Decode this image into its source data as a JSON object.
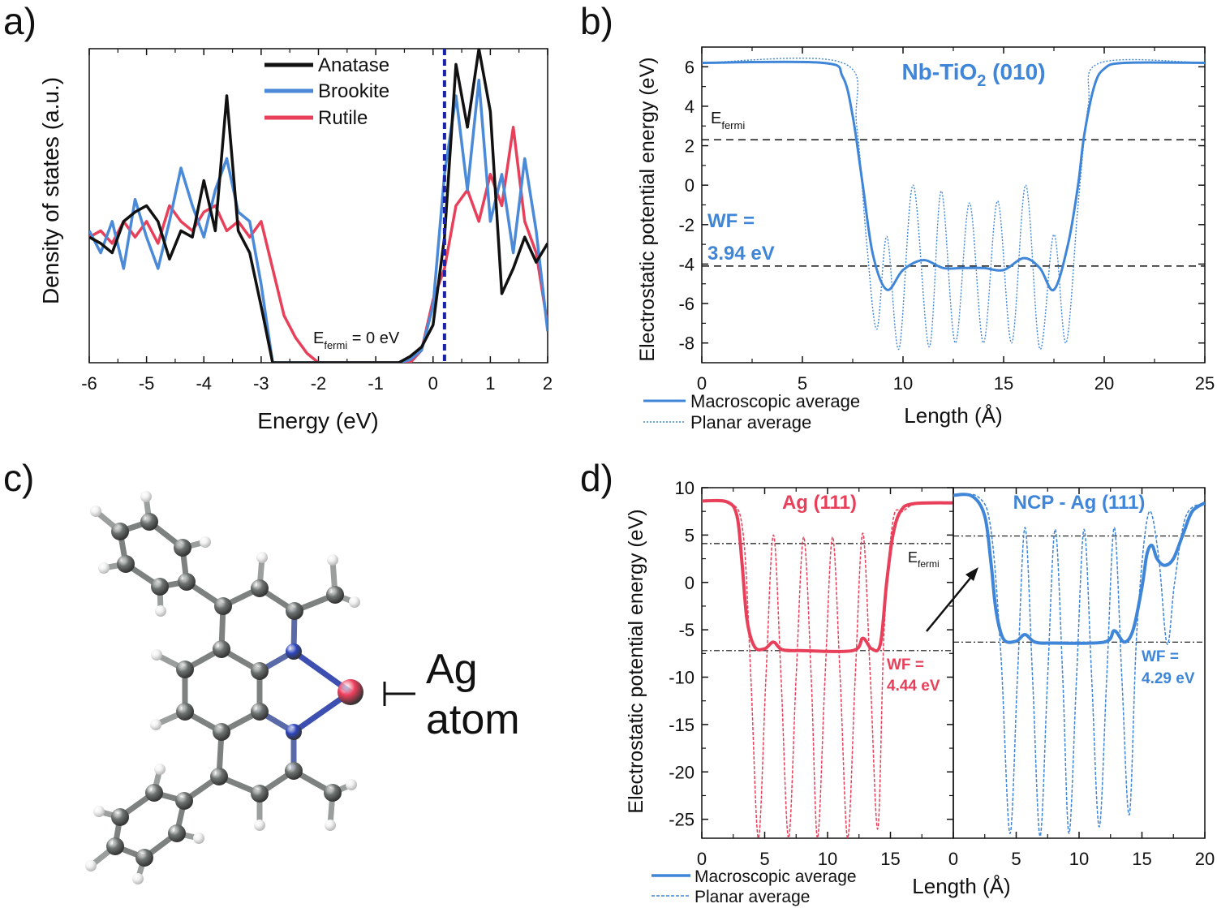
{
  "panels": {
    "a": {
      "label": "a)"
    },
    "b": {
      "label": "b)"
    },
    "c": {
      "label": "c)",
      "ag_label_line1": "Ag",
      "ag_label_line2": "atom"
    },
    "d": {
      "label": "d)"
    }
  },
  "colors": {
    "anatase": "#111111",
    "brookite": "#4a8ad8",
    "rutile": "#e8405a",
    "fermi_line": "#1a22a8",
    "blue": "#3f85d8",
    "red": "#e8405a",
    "carbon": "#6e7472",
    "nitrogen": "#2e46c0",
    "hydrogen": "#f2f2f2",
    "silver": "#f0405e"
  },
  "chart_data": [
    {
      "id": "a",
      "type": "line",
      "xlabel": "Energy (eV)",
      "ylabel": "Density of states (a.u.)",
      "xlim": [
        -6,
        2
      ],
      "ylim": [
        0,
        1
      ],
      "xticks": [
        -6,
        -5,
        -4,
        -3,
        -2,
        -1,
        0,
        1,
        2
      ],
      "xtick_labels": [
        "-6",
        "-5",
        "-4",
        "-3",
        "-2",
        "-1",
        "0",
        "1",
        "2"
      ],
      "legend_placement": "top-center",
      "x_step": 0.2,
      "series": [
        {
          "name": "Anatase",
          "color": "#111111",
          "values": [
            0.4,
            0.38,
            0.35,
            0.45,
            0.48,
            0.5,
            0.45,
            0.33,
            0.42,
            0.4,
            0.58,
            0.42,
            0.85,
            0.42,
            0.35,
            0.18,
            0,
            0,
            0,
            0,
            0,
            0,
            0,
            0,
            0,
            0,
            0,
            0,
            0.02,
            0.05,
            0.12,
            0.4,
            0.95,
            0.75,
            1.0,
            0.8,
            0.22,
            0.3,
            0.4,
            0.32,
            0.38
          ]
        },
        {
          "name": "Brookite",
          "color": "#4a8ad8",
          "values": [
            0.42,
            0.35,
            0.45,
            0.3,
            0.52,
            0.4,
            0.3,
            0.45,
            0.62,
            0.5,
            0.4,
            0.55,
            0.65,
            0.48,
            0.45,
            0.25,
            0,
            0,
            0,
            0,
            0,
            0,
            0,
            0,
            0,
            0,
            0,
            0,
            0.01,
            0.04,
            0.18,
            0.6,
            0.85,
            0.55,
            0.9,
            0.45,
            0.6,
            0.35,
            0.65,
            0.42,
            0.1
          ]
        },
        {
          "name": "Rutile",
          "color": "#e8405a",
          "values": [
            0.4,
            0.42,
            0.38,
            0.45,
            0.4,
            0.45,
            0.38,
            0.5,
            0.45,
            0.42,
            0.48,
            0.5,
            0.42,
            0.45,
            0.4,
            0.45,
            0.3,
            0.15,
            0.08,
            0.03,
            0,
            0,
            0,
            0,
            0,
            0,
            0,
            0,
            0,
            0.04,
            0.2,
            0.3,
            0.5,
            0.55,
            0.45,
            0.6,
            0.5,
            0.75,
            0.45,
            0.35,
            0.12
          ]
        }
      ],
      "fermi_line_x": 0.2,
      "annotation": {
        "main": "E",
        "sub": "fermi",
        "suffix": " = 0 eV"
      }
    },
    {
      "id": "b",
      "type": "line",
      "xlabel": "Length (Å)",
      "ylabel": "Electrostatic potential energy (eV)",
      "xlim": [
        0,
        25
      ],
      "ylim": [
        -9,
        7
      ],
      "xticks": [
        0,
        5,
        10,
        15,
        20,
        25
      ],
      "xtick_labels": [
        "0",
        "5",
        "10",
        "15",
        "20",
        "25"
      ],
      "yticks": [
        6,
        4,
        2,
        0,
        -2,
        -4,
        -6,
        -8
      ],
      "ytick_labels": [
        "6",
        "4",
        "2",
        "0",
        "-2",
        "-4",
        "-6",
        "-8"
      ],
      "title": {
        "main": "Nb-TiO",
        "sub": "2",
        "suffix": " (010)"
      },
      "hlines": [
        2.3,
        -4.1
      ],
      "fermi_label": {
        "main": "E",
        "sub": "fermi"
      },
      "wf_label": [
        "WF =",
        "3.94 eV"
      ],
      "legend": [
        "Macroscopic average",
        "Planar average"
      ],
      "legend_placement": "bottom-left",
      "series": [
        {
          "name": "Macroscopic average",
          "style": "solid",
          "x": [
            0,
            6,
            7,
            7.5,
            8,
            8.5,
            9.2,
            10,
            11,
            12,
            13,
            14,
            15,
            16,
            16.8,
            17.5,
            18.2,
            18.7,
            19,
            19.5,
            20,
            21,
            25
          ],
          "y": [
            6.2,
            6.2,
            5.5,
            3.5,
            0,
            -3.5,
            -5.3,
            -4.3,
            -3.8,
            -4.2,
            -4.2,
            -4.2,
            -4.3,
            -3.7,
            -4.2,
            -5.3,
            -3,
            0,
            2.5,
            5,
            5.9,
            6.2,
            6.2
          ]
        },
        {
          "name": "Planar average",
          "style": "dotted",
          "x": [
            0,
            7,
            7.7,
            8.2,
            8.7,
            9.2,
            9.8,
            10.5,
            11.3,
            11.9,
            12.6,
            13.3,
            14,
            14.7,
            15.4,
            16.1,
            16.8,
            17.5,
            18.1,
            18.7,
            19.2,
            19.8,
            25
          ],
          "y": [
            6.2,
            6.2,
            3,
            -3,
            -7.3,
            -2.6,
            -8.3,
            0,
            -8.2,
            -0.3,
            -8,
            -0.9,
            -8,
            -0.8,
            -8,
            0,
            -8.3,
            -2.5,
            -8,
            -1,
            4,
            6.2,
            6.2
          ]
        }
      ]
    },
    {
      "id": "d-left",
      "type": "line",
      "title": "Ag (111)",
      "xlim": [
        0,
        20
      ],
      "ylim": [
        -27,
        10
      ],
      "xticks": [
        0,
        5,
        10,
        15
      ],
      "xtick_labels": [
        "0",
        "5",
        "10",
        "15"
      ],
      "yticks": [
        10,
        5,
        0,
        -5,
        -10,
        -15,
        -20,
        -25
      ],
      "ytick_labels": [
        "10",
        "5",
        "0",
        "-5",
        "-10",
        "-15",
        "-20",
        "-25"
      ],
      "ylabel": "Electrostatic potential energy (eV)",
      "hlines": [
        4.1,
        -7.2
      ],
      "fermi_label": {
        "main": "E",
        "sub": "fermi"
      },
      "wf_label": [
        "WF =",
        "4.44 eV"
      ],
      "series": [
        {
          "name": "Macroscopic average",
          "style": "solid",
          "x": [
            0,
            2,
            2.8,
            3.2,
            3.6,
            4.2,
            5,
            5.7,
            6.4,
            8,
            12,
            12.8,
            13.5,
            14.2,
            14.7,
            15.2,
            15.8,
            16.8,
            20
          ],
          "y": [
            8.6,
            8.5,
            7,
            2,
            -4,
            -6.8,
            -7,
            -6.3,
            -7.1,
            -7.2,
            -7.2,
            -5.9,
            -7,
            -6.5,
            0,
            5,
            7.5,
            8.3,
            8.4
          ]
        },
        {
          "name": "Planar average",
          "style": "dashed",
          "x": [
            0,
            2.3,
            3.3,
            3.9,
            4.5,
            5.1,
            5.7,
            6.3,
            6.9,
            7.5,
            8.1,
            8.7,
            9.2,
            9.8,
            10.4,
            11,
            11.6,
            12.2,
            12.8,
            13.4,
            14,
            14.5,
            15.2,
            16,
            17.2,
            20
          ],
          "y": [
            8.6,
            8.4,
            5,
            -10,
            -27,
            -10,
            5,
            -10,
            -27,
            -10,
            4.8,
            -10,
            -27,
            -10,
            4.8,
            -10,
            -27,
            -10,
            5.2,
            -10,
            -26,
            -5,
            6.5,
            7.5,
            8.4,
            8.4
          ]
        }
      ]
    },
    {
      "id": "d-right",
      "type": "line",
      "title": "NCP - Ag (111)",
      "xlim": [
        0,
        20
      ],
      "ylim": [
        -27,
        10
      ],
      "xticks": [
        0,
        5,
        10,
        15,
        20
      ],
      "xtick_labels": [
        "0",
        "5",
        "10",
        "15",
        "20"
      ],
      "xlabel": "Length (Å)",
      "hlines": [
        4.9,
        -6.3
      ],
      "wf_label": [
        "WF =",
        "4.29 eV"
      ],
      "legend": [
        "Macroscopic average",
        "Planar average"
      ],
      "legend_placement": "bottom-left",
      "series": [
        {
          "name": "Macroscopic average",
          "style": "solid",
          "x": [
            0,
            1.5,
            2.5,
            3,
            3.4,
            4,
            5,
            5.7,
            6.5,
            8,
            12,
            12.8,
            13.6,
            14.3,
            15,
            15.4,
            15.8,
            16.2,
            16.8,
            17.5,
            18.3,
            19,
            20
          ],
          "y": [
            9.2,
            9.1,
            7,
            2,
            -3,
            -6,
            -6.2,
            -5.5,
            -6.3,
            -6.4,
            -6.3,
            -5.1,
            -6.3,
            -5,
            -0.5,
            3,
            3.9,
            2.5,
            1.8,
            2.5,
            5.2,
            7.5,
            8.4
          ]
        },
        {
          "name": "Planar average",
          "style": "dashed",
          "x": [
            0,
            2,
            3,
            3.8,
            4.5,
            5.1,
            5.7,
            6.3,
            6.9,
            7.5,
            8.1,
            8.7,
            9.2,
            9.8,
            10.4,
            11,
            11.6,
            12.2,
            12.8,
            13.4,
            14,
            14.6,
            15.5,
            16.3,
            17,
            17.6,
            18.5,
            20
          ],
          "y": [
            9.2,
            9,
            5.5,
            -8,
            -26.5,
            -10,
            5.8,
            -10,
            -26.8,
            -10,
            5.6,
            -10,
            -26.5,
            -10,
            5.6,
            -10,
            -25.8,
            -10,
            5.8,
            -10,
            -24.5,
            -5,
            7.2,
            3,
            -6.5,
            0,
            7,
            8.4
          ]
        }
      ]
    }
  ]
}
